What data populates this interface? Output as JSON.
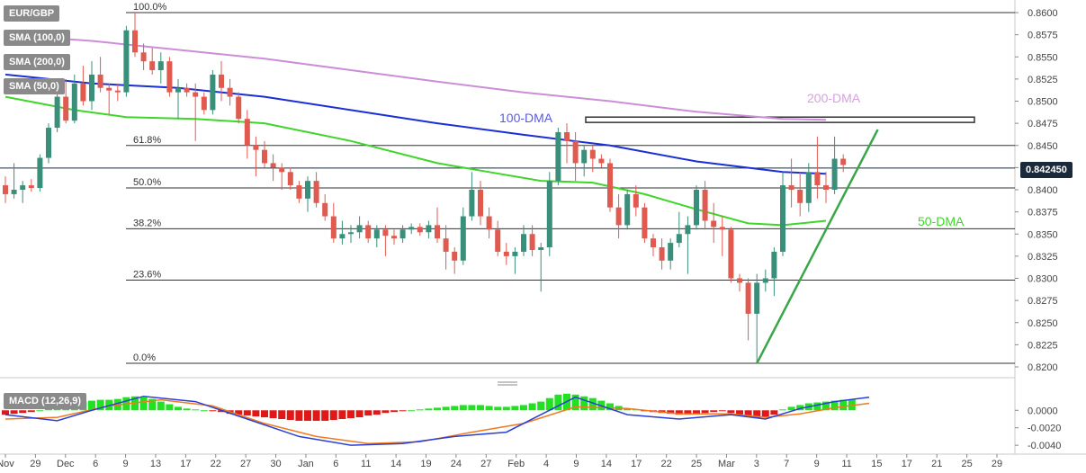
{
  "symbol_label": "EUR/GBP",
  "indicator_labels": [
    "SMA (100,0)",
    "SMA (200,0)",
    "SMA (50,0)"
  ],
  "macd_label": "MACD (12,26,9)",
  "current_price": "0.842450",
  "colors": {
    "bull": "#3a8f7a",
    "bear": "#e05a50",
    "sma100": "#1a2fd6",
    "sma200": "#cc8ed8",
    "sma50": "#3fd52a",
    "trendline": "#3aa64a",
    "macd_line": "#2a3fd6",
    "signal_line": "#f07a20",
    "hist_pos": "#22e022",
    "hist_neg": "#e01818"
  },
  "chart_data": {
    "type": "candlestick",
    "y_axis": {
      "min": 0.82,
      "max": 0.86,
      "ticks": [
        "0.8600",
        "0.8575",
        "0.8550",
        "0.8525",
        "0.8500",
        "0.8475",
        "0.8450",
        "0.8425",
        "0.8400",
        "0.8375",
        "0.8350",
        "0.8325",
        "0.8300",
        "0.8275",
        "0.8250",
        "0.8225",
        "0.8200"
      ]
    },
    "x_axis": {
      "labels": [
        "Nov",
        "29",
        "Dec",
        "6",
        "9",
        "13",
        "17",
        "22",
        "27",
        "30",
        "Jan",
        "6",
        "11",
        "14",
        "19",
        "24",
        "27",
        "Feb",
        "4",
        "9",
        "14",
        "17",
        "22",
        "25",
        "Mar",
        "3",
        "7",
        "9",
        "11",
        "15",
        "17",
        "21",
        "25",
        "29"
      ]
    },
    "fibonacci": [
      {
        "label": "100.0%",
        "value": 0.86
      },
      {
        "label": "61.8%",
        "value": 0.845
      },
      {
        "label": "50.0%",
        "value": 0.8402
      },
      {
        "label": "38.2%",
        "value": 0.8356
      },
      {
        "label": "23.6%",
        "value": 0.8298
      },
      {
        "label": "0.0%",
        "value": 0.8204
      }
    ],
    "annotations": [
      "100-DMA",
      "200-DMA",
      "50-DMA"
    ],
    "resistance_zone": {
      "low": 0.8476,
      "high": 0.8482
    },
    "candles": [
      {
        "o": 0.8405,
        "h": 0.8415,
        "l": 0.8385,
        "c": 0.8395
      },
      {
        "o": 0.8395,
        "h": 0.843,
        "l": 0.839,
        "c": 0.84
      },
      {
        "o": 0.84,
        "h": 0.841,
        "l": 0.8385,
        "c": 0.8405
      },
      {
        "o": 0.8405,
        "h": 0.8412,
        "l": 0.8398,
        "c": 0.8402
      },
      {
        "o": 0.8402,
        "h": 0.844,
        "l": 0.8398,
        "c": 0.8436
      },
      {
        "o": 0.8436,
        "h": 0.8475,
        "l": 0.843,
        "c": 0.847
      },
      {
        "o": 0.847,
        "h": 0.851,
        "l": 0.8465,
        "c": 0.8505
      },
      {
        "o": 0.8505,
        "h": 0.8525,
        "l": 0.8475,
        "c": 0.8478
      },
      {
        "o": 0.8478,
        "h": 0.853,
        "l": 0.8475,
        "c": 0.852
      },
      {
        "o": 0.852,
        "h": 0.854,
        "l": 0.8495,
        "c": 0.85
      },
      {
        "o": 0.85,
        "h": 0.8545,
        "l": 0.849,
        "c": 0.853
      },
      {
        "o": 0.853,
        "h": 0.855,
        "l": 0.851,
        "c": 0.8515
      },
      {
        "o": 0.8515,
        "h": 0.852,
        "l": 0.8485,
        "c": 0.8512
      },
      {
        "o": 0.8512,
        "h": 0.852,
        "l": 0.85,
        "c": 0.851
      },
      {
        "o": 0.851,
        "h": 0.8585,
        "l": 0.8505,
        "c": 0.858
      },
      {
        "o": 0.858,
        "h": 0.86,
        "l": 0.855,
        "c": 0.8555
      },
      {
        "o": 0.8555,
        "h": 0.8565,
        "l": 0.8535,
        "c": 0.8545
      },
      {
        "o": 0.8545,
        "h": 0.856,
        "l": 0.853,
        "c": 0.8535
      },
      {
        "o": 0.8535,
        "h": 0.8555,
        "l": 0.852,
        "c": 0.8545
      },
      {
        "o": 0.8545,
        "h": 0.855,
        "l": 0.8505,
        "c": 0.851
      },
      {
        "o": 0.851,
        "h": 0.8525,
        "l": 0.848,
        "c": 0.8515
      },
      {
        "o": 0.8515,
        "h": 0.852,
        "l": 0.8505,
        "c": 0.851
      },
      {
        "o": 0.851,
        "h": 0.852,
        "l": 0.8455,
        "c": 0.8505
      },
      {
        "o": 0.8505,
        "h": 0.851,
        "l": 0.8485,
        "c": 0.849
      },
      {
        "o": 0.849,
        "h": 0.8535,
        "l": 0.8485,
        "c": 0.853
      },
      {
        "o": 0.853,
        "h": 0.8545,
        "l": 0.85,
        "c": 0.8515
      },
      {
        "o": 0.8515,
        "h": 0.8525,
        "l": 0.8495,
        "c": 0.8505
      },
      {
        "o": 0.8505,
        "h": 0.851,
        "l": 0.8475,
        "c": 0.848
      },
      {
        "o": 0.848,
        "h": 0.849,
        "l": 0.8435,
        "c": 0.845
      },
      {
        "o": 0.845,
        "h": 0.846,
        "l": 0.8415,
        "c": 0.8445
      },
      {
        "o": 0.8445,
        "h": 0.8455,
        "l": 0.8425,
        "c": 0.843
      },
      {
        "o": 0.843,
        "h": 0.844,
        "l": 0.841,
        "c": 0.8425
      },
      {
        "o": 0.8425,
        "h": 0.843,
        "l": 0.84,
        "c": 0.842
      },
      {
        "o": 0.842,
        "h": 0.8425,
        "l": 0.84,
        "c": 0.8405
      },
      {
        "o": 0.8405,
        "h": 0.841,
        "l": 0.8385,
        "c": 0.839
      },
      {
        "o": 0.839,
        "h": 0.8415,
        "l": 0.8375,
        "c": 0.841
      },
      {
        "o": 0.841,
        "h": 0.842,
        "l": 0.838,
        "c": 0.8385
      },
      {
        "o": 0.8385,
        "h": 0.8395,
        "l": 0.8365,
        "c": 0.837
      },
      {
        "o": 0.837,
        "h": 0.8385,
        "l": 0.834,
        "c": 0.8345
      },
      {
        "o": 0.8345,
        "h": 0.8365,
        "l": 0.8338,
        "c": 0.835
      },
      {
        "o": 0.835,
        "h": 0.836,
        "l": 0.834,
        "c": 0.8352
      },
      {
        "o": 0.8352,
        "h": 0.837,
        "l": 0.8345,
        "c": 0.836
      },
      {
        "o": 0.836,
        "h": 0.8365,
        "l": 0.834,
        "c": 0.8345
      },
      {
        "o": 0.8345,
        "h": 0.836,
        "l": 0.8335,
        "c": 0.8355
      },
      {
        "o": 0.8355,
        "h": 0.836,
        "l": 0.8325,
        "c": 0.8348
      },
      {
        "o": 0.8348,
        "h": 0.8355,
        "l": 0.8338,
        "c": 0.8345
      },
      {
        "o": 0.8345,
        "h": 0.836,
        "l": 0.834,
        "c": 0.8355
      },
      {
        "o": 0.8355,
        "h": 0.8362,
        "l": 0.835,
        "c": 0.8358
      },
      {
        "o": 0.8358,
        "h": 0.8362,
        "l": 0.8348,
        "c": 0.8352
      },
      {
        "o": 0.8352,
        "h": 0.8365,
        "l": 0.8345,
        "c": 0.836
      },
      {
        "o": 0.836,
        "h": 0.838,
        "l": 0.834,
        "c": 0.8345
      },
      {
        "o": 0.8345,
        "h": 0.836,
        "l": 0.831,
        "c": 0.833
      },
      {
        "o": 0.833,
        "h": 0.8335,
        "l": 0.8305,
        "c": 0.832
      },
      {
        "o": 0.832,
        "h": 0.838,
        "l": 0.8315,
        "c": 0.837
      },
      {
        "o": 0.837,
        "h": 0.842,
        "l": 0.8365,
        "c": 0.84
      },
      {
        "o": 0.84,
        "h": 0.841,
        "l": 0.836,
        "c": 0.837
      },
      {
        "o": 0.837,
        "h": 0.838,
        "l": 0.8345,
        "c": 0.8355
      },
      {
        "o": 0.8355,
        "h": 0.8365,
        "l": 0.8325,
        "c": 0.833
      },
      {
        "o": 0.833,
        "h": 0.834,
        "l": 0.8315,
        "c": 0.8325
      },
      {
        "o": 0.8325,
        "h": 0.8335,
        "l": 0.8305,
        "c": 0.833
      },
      {
        "o": 0.833,
        "h": 0.836,
        "l": 0.8325,
        "c": 0.835
      },
      {
        "o": 0.835,
        "h": 0.836,
        "l": 0.8325,
        "c": 0.8332
      },
      {
        "o": 0.8332,
        "h": 0.834,
        "l": 0.8285,
        "c": 0.8335
      },
      {
        "o": 0.8335,
        "h": 0.842,
        "l": 0.8325,
        "c": 0.841
      },
      {
        "o": 0.841,
        "h": 0.847,
        "l": 0.8405,
        "c": 0.8465
      },
      {
        "o": 0.8465,
        "h": 0.8475,
        "l": 0.843,
        "c": 0.8455
      },
      {
        "o": 0.8455,
        "h": 0.8465,
        "l": 0.841,
        "c": 0.843
      },
      {
        "o": 0.843,
        "h": 0.845,
        "l": 0.8415,
        "c": 0.8445
      },
      {
        "o": 0.8445,
        "h": 0.845,
        "l": 0.842,
        "c": 0.8435
      },
      {
        "o": 0.8435,
        "h": 0.844,
        "l": 0.8425,
        "c": 0.843
      },
      {
        "o": 0.843,
        "h": 0.8435,
        "l": 0.8375,
        "c": 0.838
      },
      {
        "o": 0.838,
        "h": 0.8395,
        "l": 0.8345,
        "c": 0.836
      },
      {
        "o": 0.836,
        "h": 0.84,
        "l": 0.8355,
        "c": 0.8395
      },
      {
        "o": 0.8395,
        "h": 0.8405,
        "l": 0.837,
        "c": 0.838
      },
      {
        "o": 0.838,
        "h": 0.8385,
        "l": 0.834,
        "c": 0.8345
      },
      {
        "o": 0.8345,
        "h": 0.835,
        "l": 0.8325,
        "c": 0.8335
      },
      {
        "o": 0.8335,
        "h": 0.8345,
        "l": 0.831,
        "c": 0.832
      },
      {
        "o": 0.832,
        "h": 0.8345,
        "l": 0.831,
        "c": 0.834
      },
      {
        "o": 0.834,
        "h": 0.8375,
        "l": 0.8335,
        "c": 0.835
      },
      {
        "o": 0.835,
        "h": 0.837,
        "l": 0.8305,
        "c": 0.836
      },
      {
        "o": 0.836,
        "h": 0.8405,
        "l": 0.8355,
        "c": 0.84
      },
      {
        "o": 0.84,
        "h": 0.841,
        "l": 0.8355,
        "c": 0.8365
      },
      {
        "o": 0.8365,
        "h": 0.8385,
        "l": 0.834,
        "c": 0.8358
      },
      {
        "o": 0.8358,
        "h": 0.837,
        "l": 0.8325,
        "c": 0.8355
      },
      {
        "o": 0.8355,
        "h": 0.8358,
        "l": 0.8295,
        "c": 0.83
      },
      {
        "o": 0.83,
        "h": 0.8305,
        "l": 0.8285,
        "c": 0.8295
      },
      {
        "o": 0.8295,
        "h": 0.83,
        "l": 0.823,
        "c": 0.826
      },
      {
        "o": 0.826,
        "h": 0.8305,
        "l": 0.8205,
        "c": 0.8295
      },
      {
        "o": 0.8295,
        "h": 0.831,
        "l": 0.8285,
        "c": 0.83
      },
      {
        "o": 0.83,
        "h": 0.8335,
        "l": 0.828,
        "c": 0.833
      },
      {
        "o": 0.833,
        "h": 0.842,
        "l": 0.8325,
        "c": 0.8405
      },
      {
        "o": 0.8405,
        "h": 0.8435,
        "l": 0.838,
        "c": 0.84
      },
      {
        "o": 0.84,
        "h": 0.842,
        "l": 0.837,
        "c": 0.8385
      },
      {
        "o": 0.8385,
        "h": 0.843,
        "l": 0.8375,
        "c": 0.842
      },
      {
        "o": 0.842,
        "h": 0.846,
        "l": 0.839,
        "c": 0.8405
      },
      {
        "o": 0.8405,
        "h": 0.842,
        "l": 0.8385,
        "c": 0.84
      },
      {
        "o": 0.84,
        "h": 0.846,
        "l": 0.8395,
        "c": 0.8435
      },
      {
        "o": 0.8435,
        "h": 0.844,
        "l": 0.842,
        "c": 0.8428
      }
    ],
    "sma100": [
      [
        0,
        0.853
      ],
      [
        10,
        0.852
      ],
      [
        20,
        0.8515
      ],
      [
        30,
        0.8505
      ],
      [
        40,
        0.849
      ],
      [
        50,
        0.8475
      ],
      [
        60,
        0.8462
      ],
      [
        70,
        0.845
      ],
      [
        80,
        0.8432
      ],
      [
        90,
        0.842
      ],
      [
        95,
        0.8418
      ]
    ],
    "sma200": [
      [
        0,
        0.8575
      ],
      [
        10,
        0.8568
      ],
      [
        20,
        0.8558
      ],
      [
        30,
        0.8548
      ],
      [
        40,
        0.8535
      ],
      [
        50,
        0.8522
      ],
      [
        60,
        0.851
      ],
      [
        70,
        0.85
      ],
      [
        80,
        0.8488
      ],
      [
        90,
        0.848
      ],
      [
        95,
        0.8479
      ]
    ],
    "sma50": [
      [
        0,
        0.8505
      ],
      [
        8,
        0.849
      ],
      [
        14,
        0.8482
      ],
      [
        22,
        0.848
      ],
      [
        30,
        0.8475
      ],
      [
        40,
        0.8455
      ],
      [
        50,
        0.843
      ],
      [
        56,
        0.842
      ],
      [
        62,
        0.841
      ],
      [
        68,
        0.8408
      ],
      [
        74,
        0.8395
      ],
      [
        80,
        0.8378
      ],
      [
        86,
        0.8362
      ],
      [
        90,
        0.836
      ],
      [
        95,
        0.8365
      ]
    ],
    "trendline": {
      "start": {
        "index": 87,
        "value": 0.8204
      },
      "end": {
        "index": 101,
        "value": 0.8468
      }
    },
    "macd": {
      "y_ticks": [
        "0.0000",
        "-0.0020",
        "-0.0040"
      ],
      "y_min": -0.0045,
      "y_max": 0.0025,
      "histogram": [
        -0.0005,
        -0.0004,
        -0.0003,
        -0.0002,
        0.0,
        0.0002,
        0.0004,
        0.0006,
        0.0008,
        0.001,
        0.0011,
        0.0012,
        0.0012,
        0.0013,
        0.0015,
        0.0016,
        0.0015,
        0.0013,
        0.001,
        0.0007,
        0.0004,
        0.0002,
        0.0001,
        0.0,
        -0.0001,
        -0.0002,
        -0.0004,
        -0.0005,
        -0.0006,
        -0.0007,
        -0.0008,
        -0.0009,
        -0.001,
        -0.0011,
        -0.0012,
        -0.0012,
        -0.0012,
        -0.0012,
        -0.0011,
        -0.001,
        -0.0009,
        -0.0008,
        -0.0006,
        -0.0005,
        -0.0003,
        -0.0002,
        -0.0001,
        0.0,
        0.0001,
        0.0002,
        0.0003,
        0.0004,
        0.0005,
        0.0006,
        0.0006,
        0.0006,
        0.0005,
        0.0004,
        0.0004,
        0.0005,
        0.0006,
        0.0008,
        0.001,
        0.0014,
        0.0018,
        0.0019,
        0.0018,
        0.0016,
        0.0014,
        0.0011,
        0.0008,
        0.0005,
        0.0002,
        0.0001,
        -0.0001,
        -0.0002,
        -0.0003,
        -0.0004,
        -0.0005,
        -0.0005,
        -0.0004,
        -0.0003,
        -0.0002,
        -0.0001,
        -0.0003,
        -0.0006,
        -0.0008,
        -0.0009,
        -0.0008,
        -0.0005,
        0.0001,
        0.0004,
        0.0006,
        0.0008,
        0.0009,
        0.001,
        0.0011,
        0.0012,
        0.0012
      ],
      "macd_line": [
        [
          0,
          -0.0005
        ],
        [
          6,
          -0.0012
        ],
        [
          10,
          0.0
        ],
        [
          16,
          0.0016
        ],
        [
          22,
          0.001
        ],
        [
          28,
          -0.001
        ],
        [
          34,
          -0.003
        ],
        [
          40,
          -0.004
        ],
        [
          46,
          -0.0038
        ],
        [
          52,
          -0.003
        ],
        [
          58,
          -0.0025
        ],
        [
          62,
          -0.0005
        ],
        [
          66,
          0.0015
        ],
        [
          72,
          -0.0005
        ],
        [
          78,
          -0.001
        ],
        [
          84,
          -0.0005
        ],
        [
          88,
          -0.001
        ],
        [
          92,
          0.0002
        ],
        [
          96,
          0.001
        ],
        [
          100,
          0.0015
        ]
      ],
      "signal_line": [
        [
          0,
          -0.001
        ],
        [
          6,
          -0.0008
        ],
        [
          12,
          0.0005
        ],
        [
          18,
          0.0012
        ],
        [
          24,
          0.0005
        ],
        [
          30,
          -0.0015
        ],
        [
          36,
          -0.003
        ],
        [
          42,
          -0.0038
        ],
        [
          48,
          -0.0036
        ],
        [
          54,
          -0.0025
        ],
        [
          60,
          -0.0015
        ],
        [
          66,
          0.0004
        ],
        [
          72,
          0.0002
        ],
        [
          78,
          -0.0004
        ],
        [
          84,
          -0.0004
        ],
        [
          88,
          -0.0008
        ],
        [
          92,
          -0.0004
        ],
        [
          96,
          0.0003
        ],
        [
          100,
          0.0008
        ]
      ]
    }
  }
}
